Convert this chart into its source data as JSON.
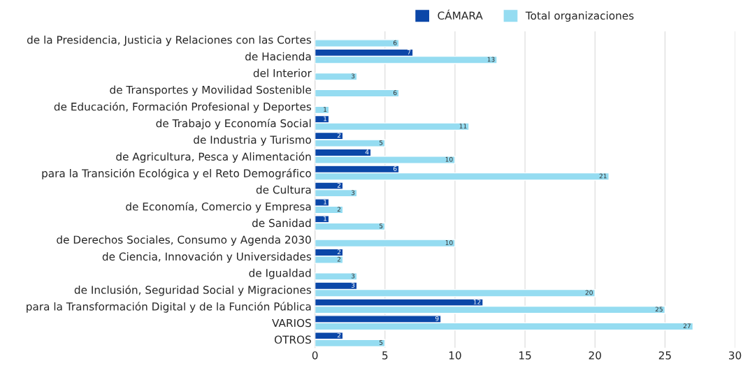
{
  "chart_data": {
    "type": "bar",
    "orientation": "horizontal",
    "categories": [
      "de la Presidencia, Justicia y Relaciones con las Cortes",
      "de Hacienda",
      "del Interior",
      "de Transportes y Movilidad Sostenible",
      "de Educación, Formación Profesional y Deportes",
      "de Trabajo y Economía Social",
      "de Industria y Turismo",
      "de Agricultura, Pesca y Alimentación",
      "para la Transición Ecológica y el Reto Demográfico",
      "de Cultura",
      "de Economía, Comercio y Empresa",
      "de Sanidad",
      "de Derechos Sociales, Consumo y Agenda 2030",
      "de Ciencia, Innovación y Universidades",
      "de Igualdad",
      "de Inclusión, Seguridad Social y Migraciones",
      "para la Transformación Digital y de la Función Pública",
      "VARIOS",
      "OTROS"
    ],
    "series": [
      {
        "name": "CÁMARA",
        "color": "#0b47a8",
        "values": [
          null,
          7,
          null,
          null,
          null,
          1,
          2,
          4,
          6,
          2,
          1,
          1,
          null,
          2,
          null,
          3,
          12,
          9,
          2
        ]
      },
      {
        "name": "Total organizaciones",
        "color": "#95dcf1",
        "values": [
          6,
          13,
          3,
          6,
          1,
          11,
          5,
          10,
          21,
          3,
          2,
          5,
          10,
          2,
          3,
          20,
          25,
          27,
          5
        ]
      }
    ],
    "xlim": [
      0,
      30
    ],
    "xticks": [
      0,
      5,
      10,
      15,
      20,
      25,
      30
    ],
    "grid": "x",
    "legend": "top",
    "data_labels": true
  }
}
